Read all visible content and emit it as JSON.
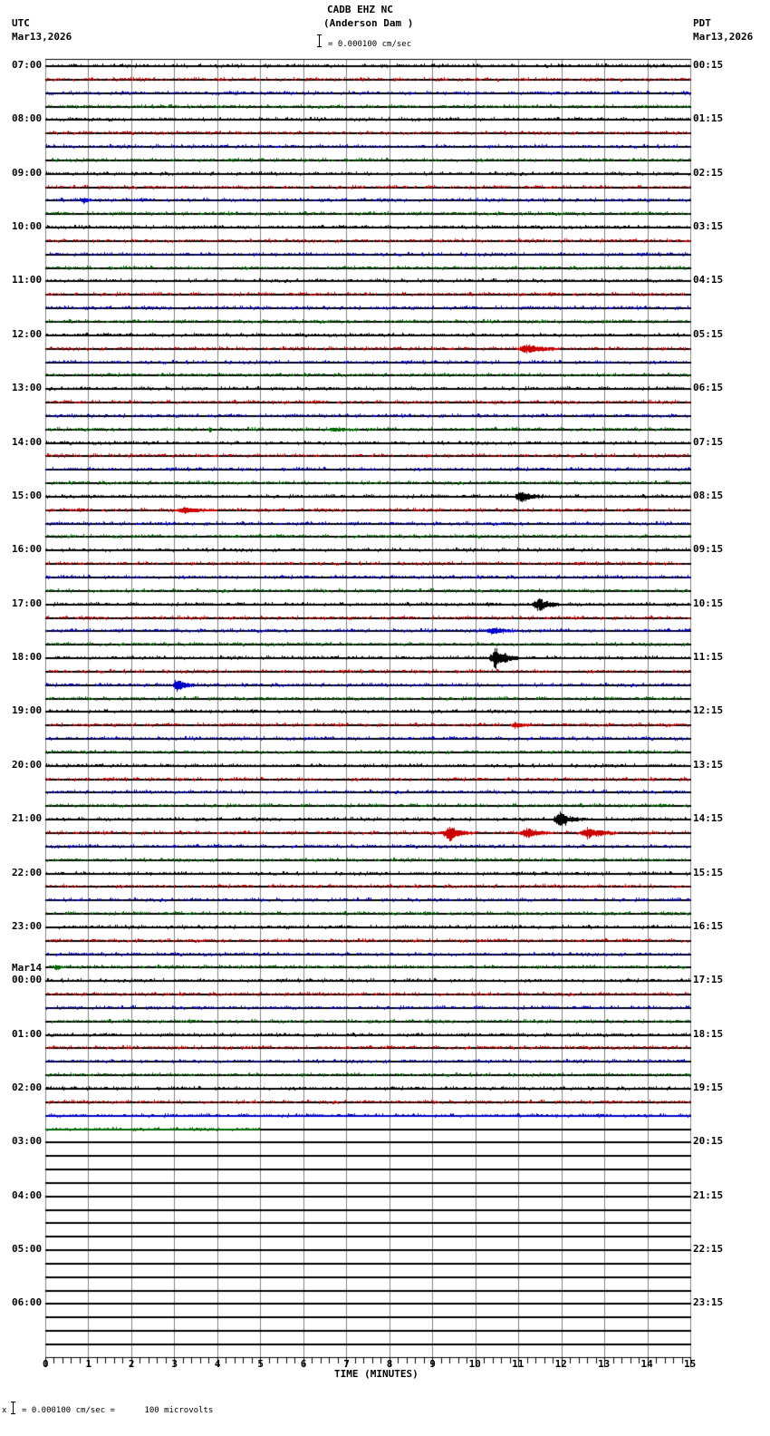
{
  "header": {
    "station": "CADB EHZ NC",
    "location": "(Anderson Dam )",
    "left_tz": "UTC",
    "left_date": "Mar13,2026",
    "right_tz": "PDT",
    "right_date": "Mar13,2026",
    "scale_text": "= 0.000100 cm/sec"
  },
  "footer": {
    "scale_prefix": "x",
    "scale_text": "= 0.000100 cm/sec =      100 microvolts"
  },
  "chart_data": {
    "type": "line",
    "title": "CADB EHZ NC (Anderson Dam )",
    "xlabel": "TIME (MINUTES)",
    "ylabel": "",
    "xlim": [
      0,
      15
    ],
    "x_ticks": [
      "0",
      "1",
      "2",
      "3",
      "4",
      "5",
      "6",
      "7",
      "8",
      "9",
      "10",
      "11",
      "12",
      "13",
      "14",
      "15"
    ],
    "trace_colors": [
      "#000000",
      "#cc0000",
      "#0000cc",
      "#006600"
    ],
    "traces_per_hour": 4,
    "minutes_per_trace": 15,
    "total_traces": 96,
    "data_traces": 80,
    "last_trace_end_minute": 5,
    "left_labels": [
      {
        "row": 0,
        "text": "07:00"
      },
      {
        "row": 4,
        "text": "08:00"
      },
      {
        "row": 8,
        "text": "09:00"
      },
      {
        "row": 12,
        "text": "10:00"
      },
      {
        "row": 16,
        "text": "11:00"
      },
      {
        "row": 20,
        "text": "12:00"
      },
      {
        "row": 24,
        "text": "13:00"
      },
      {
        "row": 28,
        "text": "14:00"
      },
      {
        "row": 32,
        "text": "15:00"
      },
      {
        "row": 36,
        "text": "16:00"
      },
      {
        "row": 40,
        "text": "17:00"
      },
      {
        "row": 44,
        "text": "18:00"
      },
      {
        "row": 48,
        "text": "19:00"
      },
      {
        "row": 52,
        "text": "20:00"
      },
      {
        "row": 56,
        "text": "21:00"
      },
      {
        "row": 60,
        "text": "22:00"
      },
      {
        "row": 64,
        "text": "23:00"
      },
      {
        "row": 68,
        "text": "00:00",
        "date": "Mar14"
      },
      {
        "row": 72,
        "text": "01:00"
      },
      {
        "row": 76,
        "text": "02:00"
      },
      {
        "row": 80,
        "text": "03:00"
      },
      {
        "row": 84,
        "text": "04:00"
      },
      {
        "row": 88,
        "text": "05:00"
      },
      {
        "row": 92,
        "text": "06:00"
      }
    ],
    "right_labels": [
      {
        "row": 0,
        "text": "00:15"
      },
      {
        "row": 4,
        "text": "01:15"
      },
      {
        "row": 8,
        "text": "02:15"
      },
      {
        "row": 12,
        "text": "03:15"
      },
      {
        "row": 16,
        "text": "04:15"
      },
      {
        "row": 20,
        "text": "05:15"
      },
      {
        "row": 24,
        "text": "06:15"
      },
      {
        "row": 28,
        "text": "07:15"
      },
      {
        "row": 32,
        "text": "08:15"
      },
      {
        "row": 36,
        "text": "09:15"
      },
      {
        "row": 40,
        "text": "10:15"
      },
      {
        "row": 44,
        "text": "11:15"
      },
      {
        "row": 48,
        "text": "12:15"
      },
      {
        "row": 52,
        "text": "13:15"
      },
      {
        "row": 56,
        "text": "14:15"
      },
      {
        "row": 60,
        "text": "15:15"
      },
      {
        "row": 64,
        "text": "16:15"
      },
      {
        "row": 68,
        "text": "17:15"
      },
      {
        "row": 72,
        "text": "18:15"
      },
      {
        "row": 76,
        "text": "19:15"
      },
      {
        "row": 80,
        "text": "20:15"
      },
      {
        "row": 84,
        "text": "21:15"
      },
      {
        "row": 88,
        "text": "22:15"
      },
      {
        "row": 92,
        "text": "23:15"
      }
    ],
    "events": [
      {
        "row": 10,
        "minute": 0.8,
        "duration": 0.3,
        "amp": 3
      },
      {
        "row": 21,
        "minute": 10.95,
        "duration": 1.0,
        "amp": 6
      },
      {
        "row": 27,
        "minute": 3.8,
        "duration": 0.1,
        "amp": 5
      },
      {
        "row": 27,
        "minute": 6.5,
        "duration": 0.8,
        "amp": 2
      },
      {
        "row": 32,
        "minute": 10.9,
        "duration": 0.7,
        "amp": 7
      },
      {
        "row": 33,
        "minute": 3.0,
        "duration": 1.0,
        "amp": 3
      },
      {
        "row": 40,
        "minute": 11.3,
        "duration": 0.7,
        "amp": 8
      },
      {
        "row": 42,
        "minute": 10.2,
        "duration": 0.8,
        "amp": 4
      },
      {
        "row": 44,
        "minute": 10.3,
        "duration": 0.7,
        "amp": 13
      },
      {
        "row": 46,
        "minute": 2.95,
        "duration": 0.5,
        "amp": 10
      },
      {
        "row": 49,
        "minute": 10.8,
        "duration": 0.5,
        "amp": 3
      },
      {
        "row": 56,
        "minute": 11.8,
        "duration": 0.7,
        "amp": 10
      },
      {
        "row": 57,
        "minute": 9.2,
        "duration": 0.8,
        "amp": 8
      },
      {
        "row": 57,
        "minute": 11.0,
        "duration": 0.8,
        "amp": 6
      },
      {
        "row": 57,
        "minute": 12.4,
        "duration": 0.9,
        "amp": 7
      },
      {
        "row": 67,
        "minute": 0.2,
        "duration": 0.3,
        "amp": 3
      }
    ]
  }
}
